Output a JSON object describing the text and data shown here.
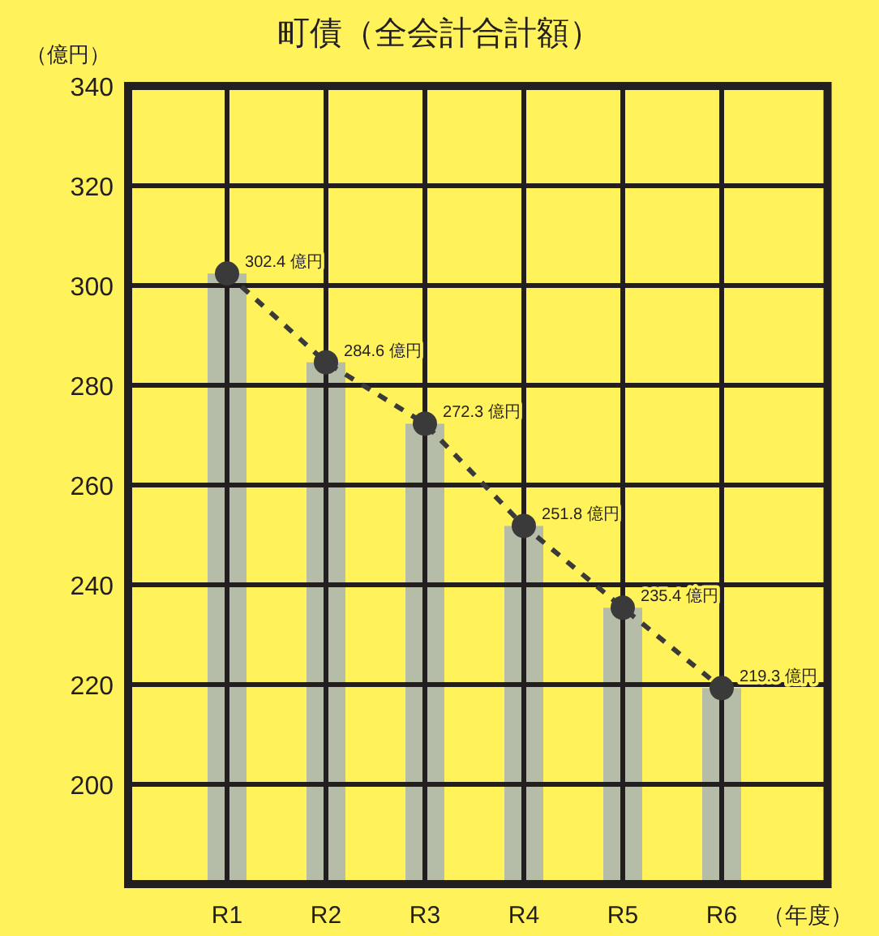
{
  "chart_data": {
    "type": "bar",
    "title": "町債（全会計合計額）",
    "ylabel": "（億円）",
    "xlabel": "（年度）",
    "categories": [
      "R1",
      "R2",
      "R3",
      "R4",
      "R5",
      "R6"
    ],
    "series": [
      {
        "color": "#b5bda8",
        "values": [
          302.4,
          284.6,
          272.3,
          251.8,
          235.4,
          219.3
        ]
      },
      {
        "type": "line",
        "color": "#3a3a3a",
        "marker": "circle",
        "line_style": "dashed",
        "values": [
          302.4,
          284.6,
          272.3,
          251.8,
          235.4,
          219.3
        ],
        "value_labels": [
          "302.4 億円",
          "284.6 億円",
          "272.3 億円",
          "251.8 億円",
          "235.4 億円",
          "219.3 億円"
        ]
      }
    ],
    "ylim": [
      180,
      340
    ],
    "yticks": [
      200,
      220,
      240,
      260,
      280,
      300,
      320,
      340
    ],
    "grid": true
  }
}
